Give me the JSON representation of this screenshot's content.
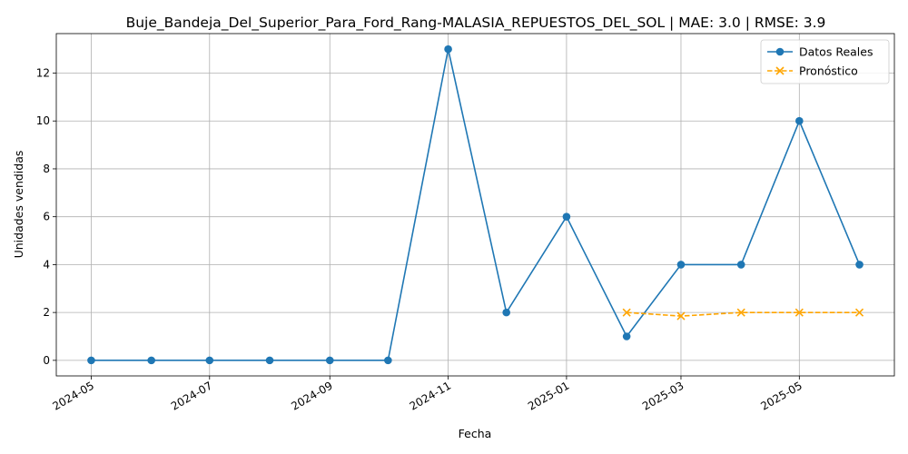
{
  "chart_data": {
    "type": "line",
    "title": "Buje_Bandeja_Del_Superior_Para_Ford_Rang-MALASIA_REPUESTOS_DEL_SOL | MAE: 3.0 | RMSE: 3.9",
    "xlabel": "Fecha",
    "ylabel": "Unidades vendidas",
    "x_ticks": [
      "2024-05",
      "2024-07",
      "2024-09",
      "2024-11",
      "2025-01",
      "2025-03",
      "2025-05"
    ],
    "y_ticks": [
      0,
      2,
      4,
      6,
      8,
      10,
      12
    ],
    "ylim": [
      -0.65,
      13.65
    ],
    "xlim": [
      "2024-04-13",
      "2025-06-19"
    ],
    "grid": true,
    "legend_position": "top-right",
    "series": [
      {
        "name": "Datos Reales",
        "color": "#1f77b4",
        "marker": "circle",
        "line_style": "solid",
        "x": [
          "2024-05-01",
          "2024-06-01",
          "2024-07-01",
          "2024-08-01",
          "2024-09-01",
          "2024-10-01",
          "2024-11-01",
          "2024-12-01",
          "2025-01-01",
          "2025-02-01",
          "2025-03-01",
          "2025-04-01",
          "2025-05-01",
          "2025-06-01"
        ],
        "y": [
          0,
          0,
          0,
          0,
          0,
          0,
          13,
          2,
          6,
          1,
          4,
          4,
          10,
          4
        ]
      },
      {
        "name": "Pronóstico",
        "color": "#ffa500",
        "marker": "x",
        "line_style": "dashed",
        "x": [
          "2025-02-01",
          "2025-03-01",
          "2025-04-01",
          "2025-05-01",
          "2025-06-01"
        ],
        "y": [
          2.0,
          1.85,
          2.0,
          2.0,
          2.0
        ]
      }
    ]
  }
}
